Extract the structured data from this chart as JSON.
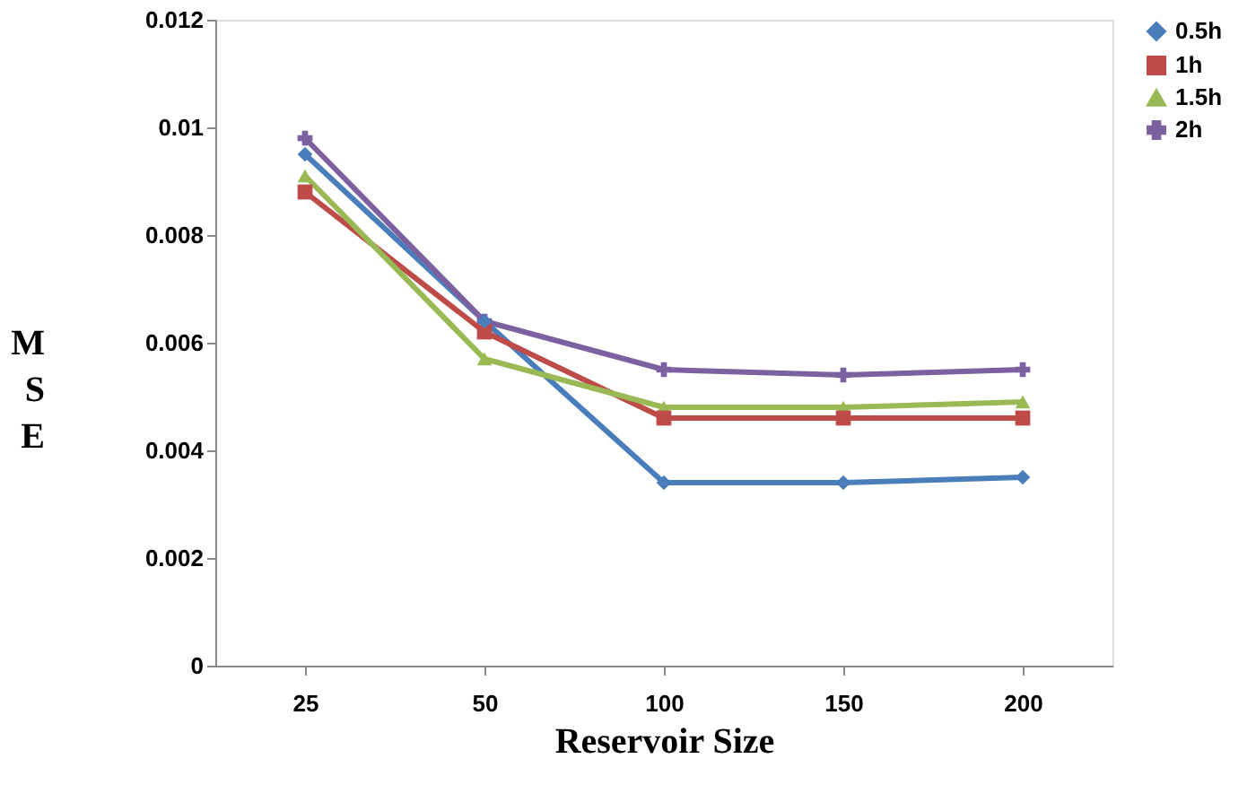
{
  "chart_data": {
    "type": "line",
    "xlabel": "Reservoir Size",
    "ylabel": "MSE",
    "categories": [
      "25",
      "50",
      "100",
      "150",
      "200"
    ],
    "series": [
      {
        "name": "0.5h",
        "color": "#4a7ebb",
        "marker": "diamond",
        "values": [
          0.0095,
          0.0064,
          0.0034,
          0.0034,
          0.0035
        ]
      },
      {
        "name": "1h",
        "color": "#be4b48",
        "marker": "square",
        "values": [
          0.0088,
          0.0062,
          0.0046,
          0.0046,
          0.0046
        ]
      },
      {
        "name": "1.5h",
        "color": "#98b954",
        "marker": "triangle",
        "values": [
          0.0091,
          0.0057,
          0.0048,
          0.0048,
          0.0049
        ]
      },
      {
        "name": "2h",
        "color": "#7d60a0",
        "marker": "cross",
        "values": [
          0.0098,
          0.0064,
          0.0055,
          0.0054,
          0.0055
        ]
      }
    ],
    "ylim": [
      0,
      0.012
    ],
    "yticks": [
      0,
      0.002,
      0.004,
      0.006,
      0.008,
      0.01,
      0.012
    ],
    "grid": false,
    "legend": "right",
    "line_style": "solid"
  }
}
